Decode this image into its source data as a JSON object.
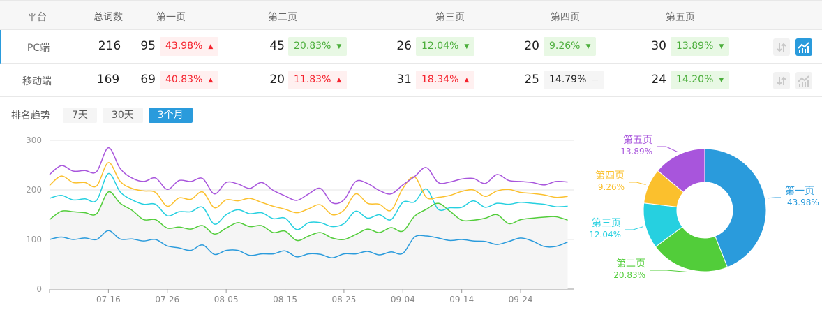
{
  "table": {
    "headers": [
      "平台",
      "总词数",
      "第一页",
      "第二页",
      "第三页",
      "第四页",
      "第五页"
    ],
    "rows": [
      {
        "platform": "PC端",
        "total": "216",
        "pages": [
          {
            "count": "95",
            "pct": "43.98%",
            "trend": "up"
          },
          {
            "count": "45",
            "pct": "20.83%",
            "trend": "down"
          },
          {
            "count": "26",
            "pct": "12.04%",
            "trend": "down"
          },
          {
            "count": "20",
            "pct": "9.26%",
            "trend": "down"
          },
          {
            "count": "30",
            "pct": "13.89%",
            "trend": "down"
          }
        ],
        "chart_selected": true
      },
      {
        "platform": "移动端",
        "total": "169",
        "pages": [
          {
            "count": "69",
            "pct": "40.83%",
            "trend": "up"
          },
          {
            "count": "20",
            "pct": "11.83%",
            "trend": "up"
          },
          {
            "count": "31",
            "pct": "18.34%",
            "trend": "up"
          },
          {
            "count": "25",
            "pct": "14.79%",
            "trend": "flat"
          },
          {
            "count": "24",
            "pct": "14.20%",
            "trend": "down"
          }
        ],
        "chart_selected": false
      }
    ],
    "icons": [
      "sort-icon",
      "trend-chart-icon"
    ]
  },
  "trend": {
    "label": "排名趋势",
    "ranges": [
      "7天",
      "30天",
      "3个月"
    ],
    "selected": "3个月"
  },
  "colors": {
    "accent": "#2a9bdc",
    "up": "#f5222d",
    "down": "#4bae3b",
    "page1": "#2a9bdc",
    "page2": "#52cd3a",
    "page3": "#26d0e0",
    "page4": "#fbc02d",
    "page5": "#a855dc"
  },
  "chart_data": [
    {
      "type": "line",
      "xlabel": "",
      "ylabel": "",
      "ylim": [
        0,
        300
      ],
      "yticks": [
        0,
        100,
        200,
        300
      ],
      "xticks": [
        "07-16",
        "07-26",
        "08-05",
        "08-15",
        "08-25",
        "09-04",
        "09-14",
        "09-24"
      ],
      "x_start": "07-06",
      "x_step_days": 2,
      "grid": true,
      "series": [
        {
          "color": "#2a9bdc",
          "values": [
            100,
            105,
            100,
            103,
            100,
            118,
            101,
            101,
            97,
            100,
            87,
            83,
            78,
            89,
            70,
            78,
            78,
            68,
            71,
            71,
            77,
            65,
            71,
            70,
            63,
            71,
            71,
            76,
            69,
            75,
            72,
            105,
            107,
            103,
            98,
            100,
            97,
            96,
            90,
            96,
            103,
            97,
            86,
            86,
            95
          ]
        },
        {
          "color": "#52cd3a",
          "values": [
            140,
            157,
            156,
            154,
            152,
            196,
            173,
            159,
            140,
            140,
            123,
            125,
            121,
            128,
            111,
            123,
            134,
            126,
            128,
            114,
            117,
            98,
            107,
            114,
            103,
            100,
            110,
            121,
            114,
            124,
            117,
            147,
            161,
            173,
            157,
            139,
            139,
            143,
            150,
            132,
            140,
            143,
            145,
            146,
            139
          ]
        },
        {
          "color": "#26d0e0",
          "values": [
            183,
            189,
            180,
            182,
            179,
            233,
            196,
            180,
            171,
            171,
            148,
            156,
            156,
            165,
            131,
            150,
            160,
            152,
            154,
            142,
            143,
            120,
            134,
            134,
            126,
            132,
            157,
            143,
            150,
            140,
            175,
            176,
            202,
            161,
            164,
            165,
            178,
            165,
            173,
            171,
            175,
            173,
            171,
            166,
            167
          ]
        },
        {
          "color": "#fbc02d",
          "values": [
            209,
            228,
            215,
            215,
            208,
            255,
            217,
            203,
            198,
            195,
            167,
            184,
            181,
            196,
            164,
            180,
            178,
            183,
            175,
            167,
            161,
            154,
            162,
            170,
            150,
            159,
            192,
            173,
            171,
            159,
            203,
            226,
            185,
            185,
            189,
            197,
            200,
            187,
            198,
            201,
            195,
            193,
            190,
            185,
            187
          ]
        },
        {
          "color": "#a855dc",
          "values": [
            231,
            249,
            238,
            239,
            237,
            285,
            243,
            224,
            217,
            224,
            201,
            219,
            217,
            223,
            192,
            215,
            212,
            203,
            215,
            199,
            188,
            179,
            192,
            203,
            174,
            180,
            217,
            213,
            199,
            192,
            210,
            227,
            245,
            215,
            216,
            222,
            223,
            213,
            231,
            219,
            217,
            215,
            210,
            217,
            216
          ]
        }
      ]
    },
    {
      "type": "pie",
      "donut": true,
      "slices": [
        {
          "label": "第一页",
          "pct": "43.98%",
          "value": 43.98,
          "color": "#2a9bdc"
        },
        {
          "label": "第二页",
          "pct": "20.83%",
          "value": 20.83,
          "color": "#52cd3a"
        },
        {
          "label": "第三页",
          "pct": "12.04%",
          "value": 12.04,
          "color": "#26d0e0"
        },
        {
          "label": "第四页",
          "pct": "9.26%",
          "value": 9.26,
          "color": "#fbc02d"
        },
        {
          "label": "第五页",
          "pct": "13.89%",
          "value": 13.89,
          "color": "#a855dc"
        }
      ]
    }
  ]
}
